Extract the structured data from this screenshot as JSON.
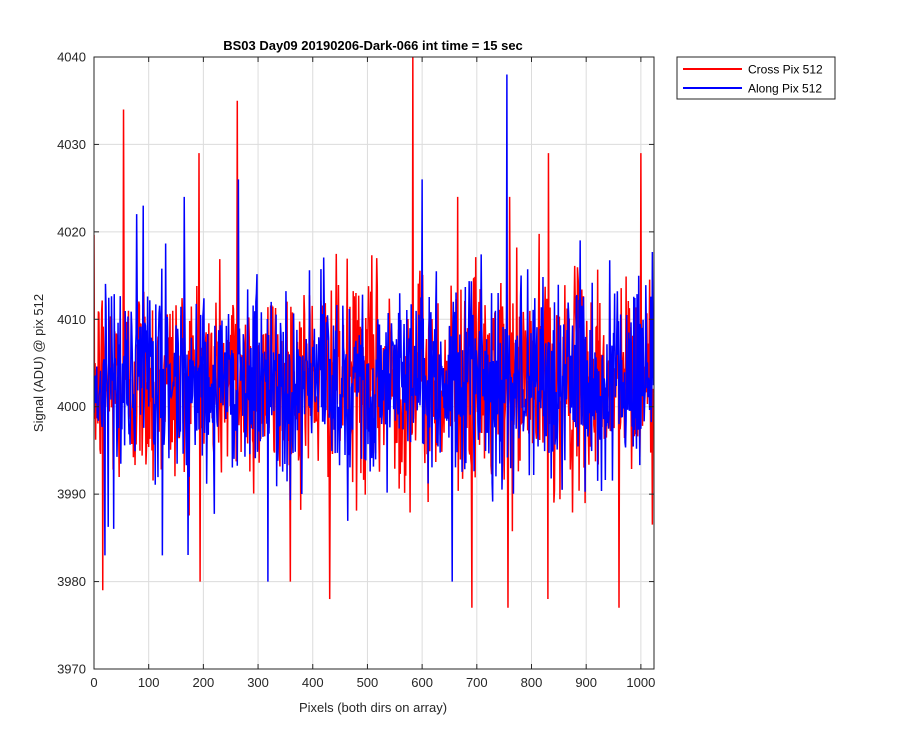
{
  "chart_data": {
    "type": "line",
    "title": "BS03 Day09 20190206-Dark-066 int time = 15 sec",
    "xlabel": "Pixels (both dirs on array)",
    "ylabel": "Signal (ADU) @ pix 512",
    "xlim": [
      0,
      1024
    ],
    "ylim": [
      3970,
      4040
    ],
    "xticks": [
      0,
      100,
      200,
      300,
      400,
      500,
      600,
      700,
      800,
      900,
      1000
    ],
    "yticks": [
      3970,
      3980,
      3990,
      4000,
      4010,
      4020,
      4030,
      4040
    ],
    "grid": true,
    "legend_position": "outside-top-right",
    "series": [
      {
        "name": "Cross Pix 512",
        "color": "#ff0000",
        "mean": 4003,
        "noise_sigma": 6,
        "points": 1024,
        "peaks": [
          [
            54,
            4034
          ],
          [
            192,
            4029
          ],
          [
            262,
            4035
          ],
          [
            583,
            4040
          ],
          [
            665,
            4024
          ],
          [
            760,
            4024
          ],
          [
            831,
            4029
          ],
          [
            1000,
            4029
          ]
        ],
        "dips": [
          [
            16,
            3979
          ],
          [
            431,
            3978
          ],
          [
            691,
            3977
          ],
          [
            757,
            3977
          ],
          [
            830,
            3978
          ],
          [
            960,
            3977
          ]
        ]
      },
      {
        "name": "Along Pix 512",
        "color": "#0000ff",
        "mean": 4003,
        "noise_sigma": 5.5,
        "points": 1024,
        "peaks": [
          [
            90,
            4023
          ],
          [
            165,
            4024
          ],
          [
            264,
            4026
          ],
          [
            600,
            4026
          ],
          [
            755,
            4038
          ]
        ],
        "dips": [
          [
            20,
            3983
          ],
          [
            125,
            3983
          ],
          [
            318,
            3980
          ],
          [
            655,
            3980
          ]
        ]
      }
    ]
  }
}
